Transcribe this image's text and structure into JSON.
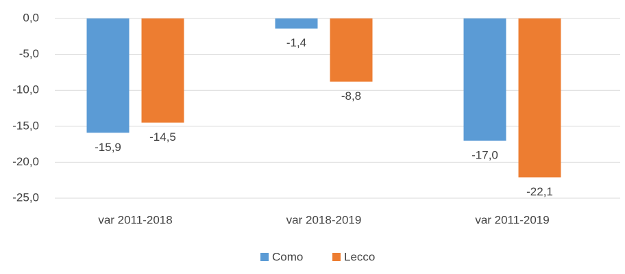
{
  "chart_data": {
    "type": "bar",
    "categories": [
      "var 2011-2018",
      "var 2018-2019",
      "var 2011-2019"
    ],
    "series": [
      {
        "name": "Como",
        "color": "#5b9bd5",
        "values": [
          -15.9,
          -1.4,
          -17.0
        ],
        "value_labels": [
          "-15,9",
          "-1,4",
          "-17,0"
        ]
      },
      {
        "name": "Lecco",
        "color": "#ed7d31",
        "values": [
          -14.5,
          -8.8,
          -22.1
        ],
        "value_labels": [
          "-14,5",
          "-8,8",
          "-22,1"
        ]
      }
    ],
    "ylim": [
      -25,
      0
    ],
    "yticks": [
      {
        "value": 0,
        "label": "0,0"
      },
      {
        "value": -5,
        "label": "-5,0"
      },
      {
        "value": -10,
        "label": "-10,0"
      },
      {
        "value": -15,
        "label": "-15,0"
      },
      {
        "value": -20,
        "label": "-20,0"
      },
      {
        "value": -25,
        "label": "-25,0"
      }
    ],
    "grid": true
  }
}
